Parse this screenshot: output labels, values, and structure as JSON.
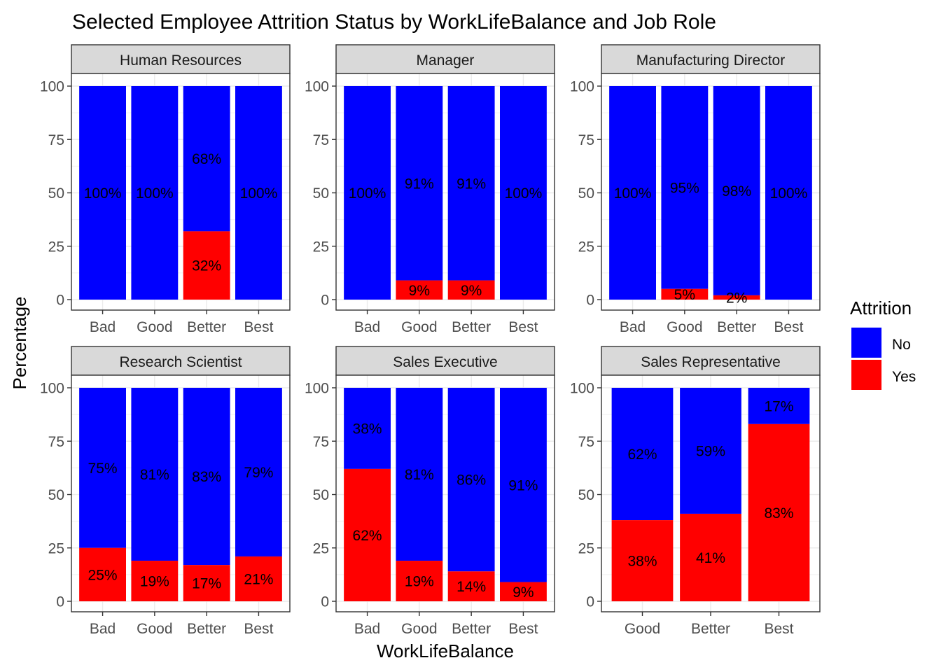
{
  "chart_data": {
    "type": "bar",
    "stacked": true,
    "title": "Selected Employee Attrition Status by WorkLifeBalance and Job Role",
    "xlabel": "WorkLifeBalance",
    "ylabel": "Percentage",
    "ylim": [
      0,
      100
    ],
    "yticks": [
      "0",
      "25",
      "50",
      "75",
      "100"
    ],
    "grid": true,
    "legend": {
      "title": "Attrition",
      "placement": "right",
      "entries": [
        {
          "name": "No",
          "color": "#0000FF"
        },
        {
          "name": "Yes",
          "color": "#FF0000"
        }
      ]
    },
    "facets": [
      {
        "name": "Human Resources",
        "categories": [
          "Bad",
          "Good",
          "Better",
          "Best"
        ],
        "yes": [
          0,
          0,
          32,
          0
        ],
        "no": [
          100,
          100,
          68,
          100
        ],
        "yes_labels": [
          "",
          "",
          "32%",
          ""
        ],
        "no_labels": [
          "100%",
          "100%",
          "68%",
          "100%"
        ]
      },
      {
        "name": "Manager",
        "categories": [
          "Bad",
          "Good",
          "Better",
          "Best"
        ],
        "yes": [
          0,
          9,
          9,
          0
        ],
        "no": [
          100,
          91,
          91,
          100
        ],
        "yes_labels": [
          "",
          "9%",
          "9%",
          ""
        ],
        "no_labels": [
          "100%",
          "91%",
          "91%",
          "100%"
        ]
      },
      {
        "name": "Manufacturing Director",
        "categories": [
          "Bad",
          "Good",
          "Better",
          "Best"
        ],
        "yes": [
          0,
          5,
          2,
          0
        ],
        "no": [
          100,
          95,
          98,
          100
        ],
        "yes_labels": [
          "",
          "5%",
          "2%",
          ""
        ],
        "no_labels": [
          "100%",
          "95%",
          "98%",
          "100%"
        ]
      },
      {
        "name": "Research Scientist",
        "categories": [
          "Bad",
          "Good",
          "Better",
          "Best"
        ],
        "yes": [
          25,
          19,
          17,
          21
        ],
        "no": [
          75,
          81,
          83,
          79
        ],
        "yes_labels": [
          "25%",
          "19%",
          "17%",
          "21%"
        ],
        "no_labels": [
          "75%",
          "81%",
          "83%",
          "79%"
        ]
      },
      {
        "name": "Sales Executive",
        "categories": [
          "Bad",
          "Good",
          "Better",
          "Best"
        ],
        "yes": [
          62,
          19,
          14,
          9
        ],
        "no": [
          38,
          81,
          86,
          91
        ],
        "yes_labels": [
          "62%",
          "19%",
          "14%",
          "9%"
        ],
        "no_labels": [
          "38%",
          "81%",
          "86%",
          "91%"
        ]
      },
      {
        "name": "Sales Representative",
        "categories": [
          "Good",
          "Better",
          "Best"
        ],
        "yes": [
          38,
          41,
          83
        ],
        "no": [
          62,
          59,
          17
        ],
        "yes_labels": [
          "38%",
          "41%",
          "83%"
        ],
        "no_labels": [
          "62%",
          "59%",
          "17%"
        ]
      }
    ]
  }
}
